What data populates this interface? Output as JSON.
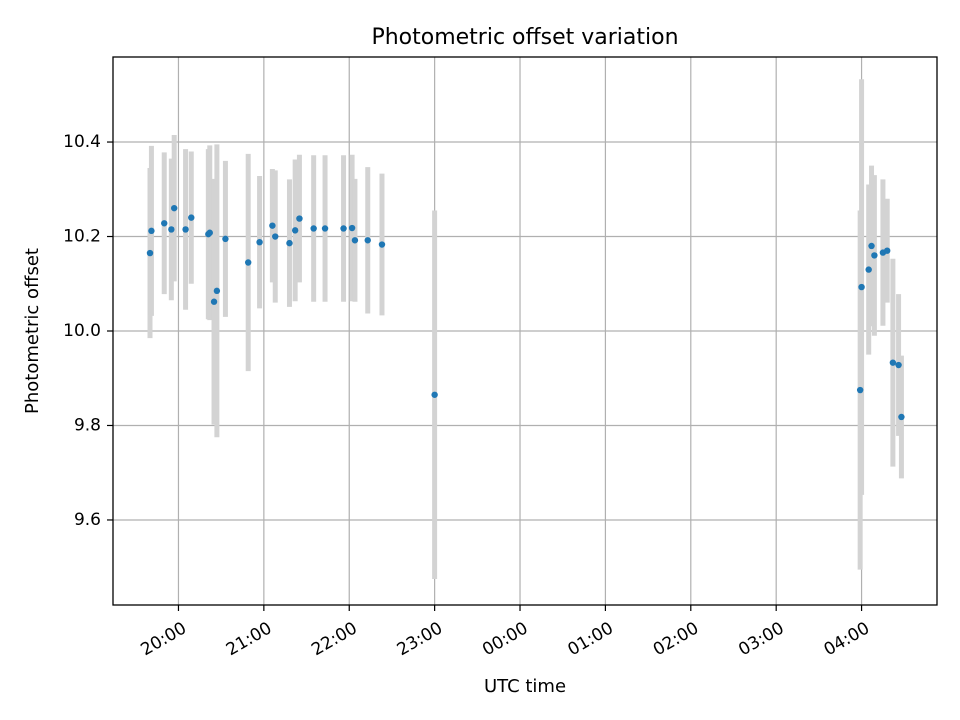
{
  "chart_data": {
    "type": "scatter",
    "title": "Photometric offset variation",
    "xlabel": "UTC time",
    "ylabel": "Photometric offset",
    "x_axis_type": "time",
    "x_start_date_unknown": true,
    "xlim": [
      "19:14",
      "04:53+1"
    ],
    "ylim": [
      9.42,
      10.58
    ],
    "grid": true,
    "colors": {
      "points": "#1f77b4",
      "errorbars": "#d3d3d3"
    },
    "x_ticks": [
      {
        "label": "20:00",
        "t": "20:00"
      },
      {
        "label": "21:00",
        "t": "21:00"
      },
      {
        "label": "22:00",
        "t": "22:00"
      },
      {
        "label": "23:00",
        "t": "23:00"
      },
      {
        "label": "00:00",
        "t": "00:00+1"
      },
      {
        "label": "01:00",
        "t": "01:00+1"
      },
      {
        "label": "02:00",
        "t": "02:00+1"
      },
      {
        "label": "03:00",
        "t": "03:00+1"
      },
      {
        "label": "04:00",
        "t": "04:00+1"
      }
    ],
    "y_ticks": [
      {
        "label": "9.6",
        "value": 9.6
      },
      {
        "label": "9.8",
        "value": 9.8
      },
      {
        "label": "10.0",
        "value": 10.0
      },
      {
        "label": "10.2",
        "value": 10.2
      },
      {
        "label": "10.4",
        "value": 10.4
      }
    ],
    "points": [
      {
        "t": "19:40",
        "y": 10.165,
        "err": 0.18
      },
      {
        "t": "19:41",
        "y": 10.212,
        "err": 0.18
      },
      {
        "t": "19:50",
        "y": 10.228,
        "err": 0.15
      },
      {
        "t": "19:55",
        "y": 10.215,
        "err": 0.15
      },
      {
        "t": "19:57",
        "y": 10.26,
        "err": 0.155
      },
      {
        "t": "20:05",
        "y": 10.215,
        "err": 0.17
      },
      {
        "t": "20:09",
        "y": 10.24,
        "err": 0.14
      },
      {
        "t": "20:21",
        "y": 10.205,
        "err": 0.18
      },
      {
        "t": "20:22",
        "y": 10.208,
        "err": 0.185
      },
      {
        "t": "20:25",
        "y": 10.062,
        "err": 0.26
      },
      {
        "t": "20:27",
        "y": 10.085,
        "err": 0.31
      },
      {
        "t": "20:33",
        "y": 10.195,
        "err": 0.165
      },
      {
        "t": "20:49",
        "y": 10.145,
        "err": 0.23
      },
      {
        "t": "20:57",
        "y": 10.188,
        "err": 0.14
      },
      {
        "t": "21:06",
        "y": 10.223,
        "err": 0.12
      },
      {
        "t": "21:08",
        "y": 10.2,
        "err": 0.14
      },
      {
        "t": "21:18",
        "y": 10.186,
        "err": 0.135
      },
      {
        "t": "21:22",
        "y": 10.213,
        "err": 0.15
      },
      {
        "t": "21:25",
        "y": 10.238,
        "err": 0.135
      },
      {
        "t": "21:35",
        "y": 10.217,
        "err": 0.155
      },
      {
        "t": "21:43",
        "y": 10.217,
        "err": 0.155
      },
      {
        "t": "21:56",
        "y": 10.217,
        "err": 0.155
      },
      {
        "t": "22:02",
        "y": 10.218,
        "err": 0.155
      },
      {
        "t": "22:04",
        "y": 10.192,
        "err": 0.13
      },
      {
        "t": "22:13",
        "y": 10.192,
        "err": 0.155
      },
      {
        "t": "22:23",
        "y": 10.183,
        "err": 0.15
      },
      {
        "t": "23:00",
        "y": 9.865,
        "err": 0.39
      },
      {
        "t": "03:59+1",
        "y": 9.875,
        "err": 0.38
      },
      {
        "t": "04:00+1",
        "y": 10.093,
        "err": 0.44
      },
      {
        "t": "04:05+1",
        "y": 10.13,
        "err": 0.18
      },
      {
        "t": "04:07+1",
        "y": 10.18,
        "err": 0.17
      },
      {
        "t": "04:09+1",
        "y": 10.16,
        "err": 0.17
      },
      {
        "t": "04:15+1",
        "y": 10.166,
        "err": 0.155
      },
      {
        "t": "04:18+1",
        "y": 10.17,
        "err": 0.11
      },
      {
        "t": "04:22+1",
        "y": 9.933,
        "err": 0.22
      },
      {
        "t": "04:26+1",
        "y": 9.928,
        "err": 0.15
      },
      {
        "t": "04:28+1",
        "y": 9.818,
        "err": 0.13
      }
    ]
  }
}
